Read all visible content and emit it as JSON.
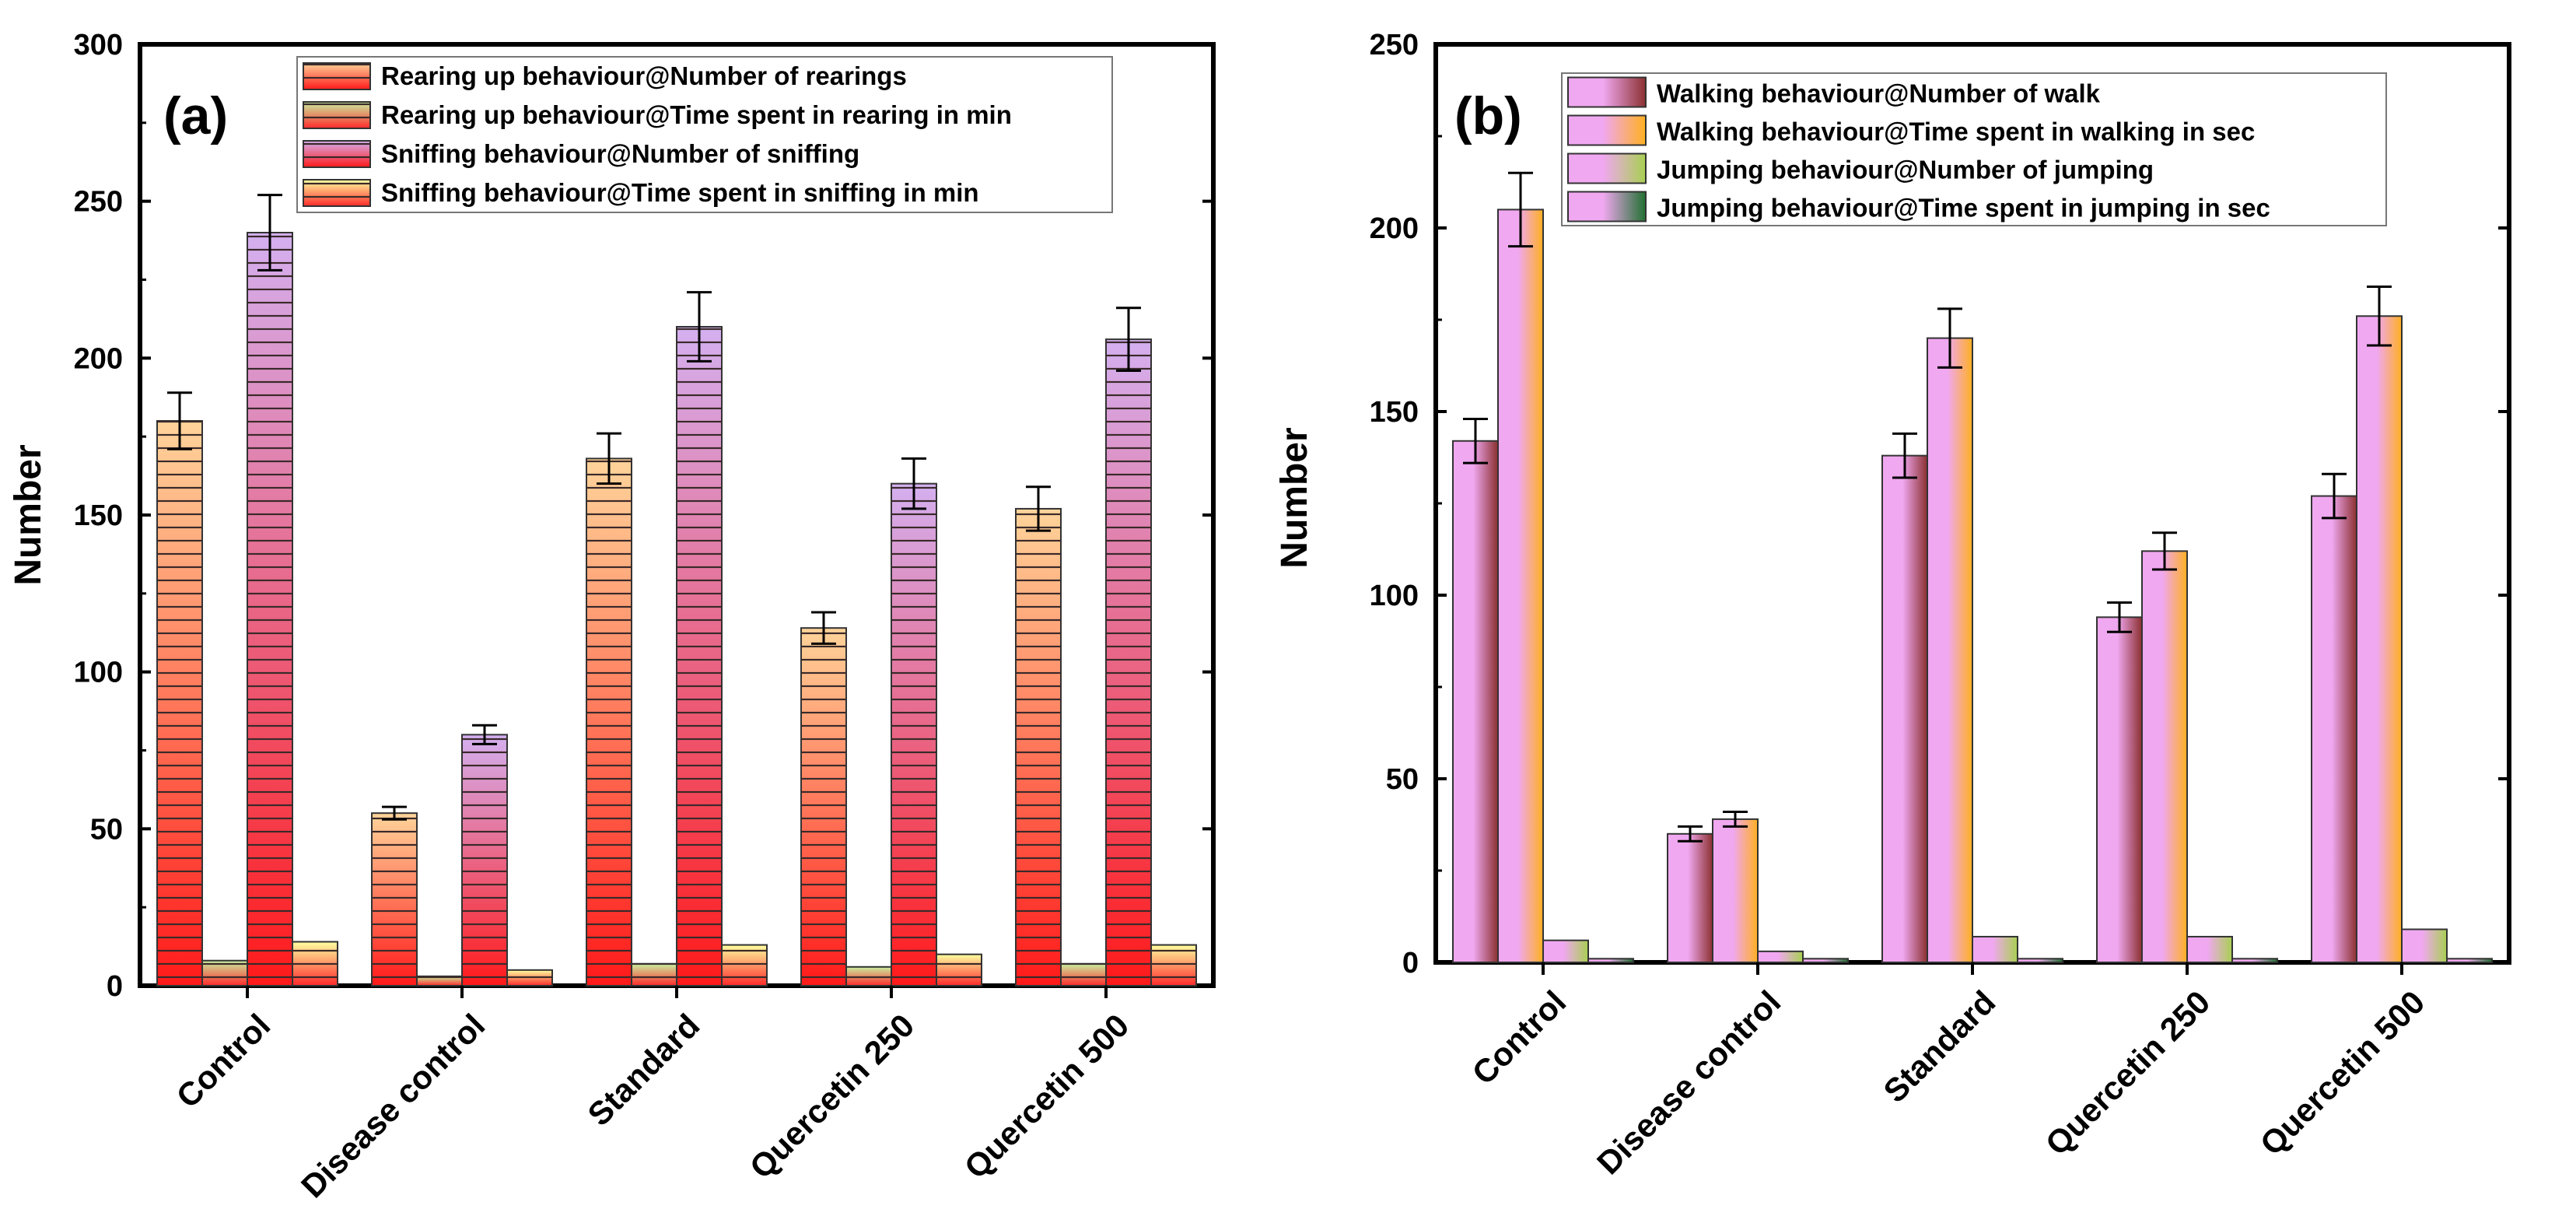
{
  "chart_data": [
    {
      "type": "bar",
      "panel_label": "(a)",
      "ylabel": "Number",
      "xlabel": "",
      "ylim": [
        0,
        300
      ],
      "yticks": [
        0,
        50,
        100,
        150,
        200,
        250,
        300
      ],
      "categories": [
        "Control",
        "Disease control",
        "Standard",
        "Quercetin 250",
        "Quercetin 500"
      ],
      "legend_position": "top-right",
      "series": [
        {
          "name": "Rearing up behaviour@Number of rearings",
          "values": [
            180,
            55,
            168,
            114,
            152
          ],
          "errors": [
            9,
            2,
            8,
            5,
            7
          ],
          "pattern": "striped",
          "color_top": "#ffd49a",
          "color_bottom": "#ff1a1a"
        },
        {
          "name": "Rearing up behaviour@Time spent in rearing in min",
          "values": [
            8,
            3,
            7,
            6,
            7
          ],
          "errors": [
            0,
            0,
            0,
            0,
            0
          ],
          "pattern": "striped",
          "color_top": "#c8f0a0",
          "color_bottom": "#ff2a2a"
        },
        {
          "name": "Sniffing behaviour@Number of sniffing",
          "values": [
            240,
            80,
            210,
            160,
            206
          ],
          "errors": [
            12,
            3,
            11,
            8,
            10
          ],
          "pattern": "striped",
          "color_top": "#d4b0f0",
          "color_bottom": "#ff1a1a"
        },
        {
          "name": "Sniffing behaviour@Time spent in sniffing in min",
          "values": [
            14,
            5,
            13,
            10,
            13
          ],
          "errors": [
            0,
            0,
            0,
            0,
            0
          ],
          "pattern": "striped",
          "color_top": "#ffffa0",
          "color_bottom": "#ff2a2a"
        }
      ]
    },
    {
      "type": "bar",
      "panel_label": "(b)",
      "ylabel": "Number",
      "xlabel": "",
      "ylim": [
        0,
        250
      ],
      "yticks": [
        0,
        50,
        100,
        150,
        200,
        250
      ],
      "categories": [
        "Control",
        "Disease control",
        "Standard",
        "Quercetin 250",
        "Quercetin 500"
      ],
      "legend_position": "top-right",
      "series": [
        {
          "name": "Walking behaviour@Number of walk",
          "values": [
            142,
            35,
            138,
            94,
            127
          ],
          "errors": [
            6,
            2,
            6,
            4,
            6
          ],
          "pattern": "solid",
          "color_left": "#f0a8f0",
          "color_right": "#8b3030"
        },
        {
          "name": "Walking behaviour@Time spent in walking in sec",
          "values": [
            205,
            39,
            170,
            112,
            176
          ],
          "errors": [
            10,
            2,
            8,
            5,
            8
          ],
          "pattern": "solid",
          "color_left": "#f0a8f0",
          "color_right": "#ffb020"
        },
        {
          "name": "Jumping behaviour@Number of jumping",
          "values": [
            6,
            3,
            7,
            7,
            9
          ],
          "errors": [
            0,
            0,
            0,
            0,
            0
          ],
          "pattern": "solid",
          "color_left": "#f0a8f0",
          "color_right": "#a8d050"
        },
        {
          "name": "Jumping behaviour@Time spent in jumping in sec",
          "values": [
            1,
            1,
            1,
            1,
            1
          ],
          "errors": [
            0,
            0,
            0,
            0,
            0
          ],
          "pattern": "solid",
          "color_left": "#f0a8f0",
          "color_right": "#207030"
        }
      ]
    }
  ]
}
